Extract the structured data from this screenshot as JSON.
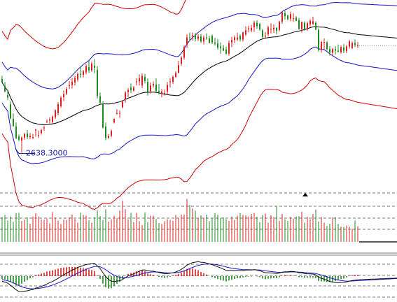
{
  "colors": {
    "up": "#d42020",
    "down": "#1f8a1f",
    "ma": "#000000",
    "band_inner": "#1515c8",
    "band_outer": "#d00000",
    "macd_fast": "#101010",
    "macd_slow": "#1515c8",
    "grid": "#7a7a7a",
    "volume_base": "#5a5a5a",
    "label": "#1a1aa6"
  },
  "icons": {
    "marker": "triangle-up-icon",
    "low_marker": "arrow-pointer-icon"
  },
  "chart_data": [
    {
      "type": "candlestick",
      "panel": "price",
      "n": 128,
      "low_annotation": "2638.3000",
      "low_index": 7,
      "ylim": [
        2560,
        2940
      ],
      "open": [
        2784,
        2770,
        2752,
        2734,
        2705,
        2690,
        2670,
        2662,
        2668,
        2676,
        2669,
        2668,
        2682,
        2672,
        2677,
        2687,
        2699,
        2702,
        2699,
        2708,
        2716,
        2730,
        2748,
        2755,
        2770,
        2772,
        2777,
        2783,
        2794,
        2792,
        2797,
        2807,
        2801,
        2810,
        2802,
        2750,
        2735,
        2690,
        2667,
        2672,
        2698,
        2716,
        2716,
        2728,
        2744,
        2758,
        2767,
        2761,
        2779,
        2779,
        2771,
        2788,
        2778,
        2760,
        2771,
        2773,
        2760,
        2755,
        2756,
        2759,
        2778,
        2778,
        2788,
        2796,
        2814,
        2826,
        2851,
        2866,
        2868,
        2870,
        2863,
        2868,
        2858,
        2866,
        2864,
        2869,
        2856,
        2854,
        2848,
        2845,
        2842,
        2834,
        2856,
        2861,
        2862,
        2869,
        2862,
        2872,
        2882,
        2880,
        2886,
        2895,
        2893,
        2880,
        2868,
        2872,
        2883,
        2882,
        2885,
        2881,
        2897,
        2914,
        2909,
        2903,
        2903,
        2905,
        2900,
        2883,
        2895,
        2883,
        2892,
        2892,
        2895,
        2881,
        2842,
        2857,
        2856,
        2843,
        2836,
        2843,
        2840,
        2837,
        2846,
        2839,
        2848,
        2845,
        2855,
        2850
      ],
      "high": [
        2790,
        2778,
        2760,
        2740,
        2716,
        2698,
        2674,
        2670,
        2677,
        2683,
        2677,
        2675,
        2685,
        2682,
        2686,
        2691,
        2704,
        2708,
        2712,
        2724,
        2738,
        2750,
        2761,
        2768,
        2780,
        2786,
        2790,
        2797,
        2807,
        2802,
        2813,
        2820,
        2818,
        2823,
        2809,
        2757,
        2740,
        2698,
        2675,
        2684,
        2706,
        2724,
        2722,
        2740,
        2760,
        2766,
        2775,
        2770,
        2785,
        2793,
        2795,
        2794,
        2785,
        2777,
        2779,
        2785,
        2774,
        2764,
        2763,
        2778,
        2786,
        2791,
        2799,
        2820,
        2829,
        2850,
        2872,
        2876,
        2876,
        2875,
        2872,
        2873,
        2870,
        2874,
        2869,
        2872,
        2865,
        2863,
        2856,
        2851,
        2848,
        2860,
        2867,
        2870,
        2875,
        2872,
        2877,
        2888,
        2889,
        2891,
        2899,
        2900,
        2895,
        2883,
        2877,
        2889,
        2894,
        2892,
        2886,
        2899,
        2916,
        2919,
        2911,
        2917,
        2914,
        2908,
        2905,
        2897,
        2898,
        2897,
        2902,
        2907,
        2898,
        2884,
        2859,
        2864,
        2859,
        2849,
        2845,
        2849,
        2852,
        2850,
        2853,
        2851,
        2861,
        2858,
        2862,
        2857
      ],
      "low": [
        2777,
        2758,
        2742,
        2704,
        2689,
        2665,
        2661,
        2638,
        2664,
        2665,
        2665,
        2665,
        2670,
        2668,
        2674,
        2681,
        2697,
        2695,
        2695,
        2705,
        2712,
        2727,
        2740,
        2752,
        2764,
        2765,
        2771,
        2779,
        2786,
        2787,
        2793,
        2796,
        2798,
        2795,
        2745,
        2733,
        2686,
        2663,
        2666,
        2669,
        2696,
        2714,
        2707,
        2726,
        2737,
        2748,
        2756,
        2759,
        2771,
        2771,
        2766,
        2775,
        2751,
        2755,
        2767,
        2756,
        2753,
        2748,
        2751,
        2752,
        2767,
        2774,
        2786,
        2795,
        2810,
        2822,
        2846,
        2859,
        2860,
        2858,
        2859,
        2855,
        2852,
        2861,
        2854,
        2853,
        2850,
        2842,
        2834,
        2839,
        2832,
        2830,
        2847,
        2855,
        2859,
        2858,
        2858,
        2869,
        2876,
        2876,
        2877,
        2883,
        2879,
        2864,
        2865,
        2868,
        2874,
        2875,
        2872,
        2878,
        2893,
        2901,
        2900,
        2898,
        2897,
        2898,
        2881,
        2876,
        2879,
        2879,
        2888,
        2892,
        2881,
        2838,
        2836,
        2842,
        2840,
        2830,
        2829,
        2832,
        2836,
        2834,
        2835,
        2835,
        2844,
        2843,
        2847,
        2845
      ],
      "close": [
        2777,
        2759,
        2747,
        2706,
        2691,
        2667,
        2664,
        2668,
        2675,
        2669,
        2671,
        2669,
        2684,
        2673,
        2683,
        2688,
        2700,
        2704,
        2709,
        2722,
        2734,
        2747,
        2754,
        2764,
        2772,
        2778,
        2786,
        2794,
        2792,
        2799,
        2809,
        2801,
        2814,
        2806,
        2750,
        2737,
        2688,
        2667,
        2671,
        2681,
        2705,
        2716,
        2717,
        2739,
        2757,
        2762,
        2762,
        2767,
        2779,
        2785,
        2790,
        2780,
        2758,
        2771,
        2774,
        2760,
        2758,
        2759,
        2756,
        2772,
        2779,
        2788,
        2796,
        2811,
        2826,
        2847,
        2866,
        2865,
        2870,
        2863,
        2868,
        2858,
        2866,
        2864,
        2855,
        2856,
        2854,
        2846,
        2845,
        2840,
        2834,
        2855,
        2861,
        2866,
        2866,
        2862,
        2876,
        2880,
        2884,
        2885,
        2895,
        2888,
        2882,
        2867,
        2869,
        2886,
        2883,
        2885,
        2879,
        2897,
        2916,
        2908,
        2902,
        2912,
        2904,
        2899,
        2883,
        2897,
        2883,
        2894,
        2899,
        2898,
        2881,
        2841,
        2857,
        2857,
        2843,
        2836,
        2843,
        2840,
        2838,
        2847,
        2840,
        2848,
        2858,
        2855,
        2851,
        2850
      ]
    },
    {
      "type": "bar",
      "panel": "volume",
      "n": 128,
      "ylim": [
        0,
        150
      ],
      "values": [
        68,
        74,
        59,
        70,
        55,
        79,
        80,
        58,
        61,
        67,
        50,
        70,
        79,
        70,
        61,
        61,
        64,
        51,
        82,
        67,
        59,
        49,
        61,
        60,
        67,
        75,
        63,
        53,
        81,
        74,
        72,
        60,
        53,
        68,
        87,
        71,
        60,
        90,
        56,
        62,
        72,
        65,
        86,
        113,
        90,
        62,
        80,
        54,
        80,
        57,
        46,
        81,
        55,
        72,
        72,
        63,
        52,
        49,
        57,
        62,
        60,
        58,
        74,
        64,
        75,
        75,
        118,
        102,
        92,
        86,
        65,
        73,
        66,
        75,
        57,
        65,
        79,
        75,
        65,
        67,
        63,
        58,
        70,
        60,
        72,
        79,
        74,
        73,
        70,
        77,
        79,
        69,
        54,
        74,
        78,
        53,
        73,
        68,
        99,
        58,
        77,
        62,
        58,
        69,
        64,
        70,
        71,
        83,
        53,
        69,
        62,
        77,
        89,
        56,
        68,
        53,
        44,
        50,
        67,
        68,
        50,
        42,
        41,
        45,
        42,
        36,
        59,
        43
      ]
    },
    {
      "type": "line",
      "panel": "macd",
      "n": 128,
      "ylim": [
        -45,
        45
      ],
      "series": [
        {
          "values": [
            -9.8,
            -11.3,
            -13.3,
            -17.5,
            -21.4,
            -25.9,
            -29.1,
            -29.2,
            -28.4,
            -27.8,
            -26.4,
            -25.3,
            -22.6,
            -21.3,
            -19.5,
            -17.5,
            -14.8,
            -12.3,
            -10.0,
            -7.1,
            -4.1,
            -0.6,
            2.4,
            5.5,
            8.5,
            11.2,
            13.9,
            16.6,
            18.4,
            20.1,
            21.9,
            22.9,
            24.0,
            24.3,
            19.4,
            14.2,
            6.5,
            -0.9,
            -6.3,
            -9.5,
            -10.0,
            -9.4,
            -8.8,
            -6.3,
            -2.8,
            0.4,
            2.5,
            4.4,
            6.9,
            9.4,
            11.6,
            11.8,
            10.1,
            9.7,
            9.4,
            8.2,
            6.9,
            5.7,
            4.5,
            4.7,
            5.4,
            6.4,
            7.9,
            10.0,
            12.8,
            16.6,
            20.6,
            23.4,
            25.6,
            26.5,
            27.2,
            26.4,
            25.9,
            24.8,
            23.1,
            21.6,
            19.8,
            17.6,
            15.6,
            13.4,
            11.0,
            10.9,
            10.7,
            10.9,
            10.9,
            10.4,
            11.0,
            11.4,
            11.7,
            11.7,
            12.2,
            11.4,
            10.3,
            8.2,
            6.5,
            6.4,
            5.9,
            5.6,
            4.9,
            5.8,
            7.7,
            8.4,
            8.3,
            9.0,
            8.7,
            7.9,
            6.3,
            6.2,
            4.8,
            4.5,
            4.4,
            4.0,
            2.5,
            -2.0,
            -4.1,
            -5.8,
            -8.0,
            -10.1,
            -11.2,
            -12.0,
            -12.4,
            -11.9,
            -11.9,
            -11.0,
            -9.4,
            -8.2,
            -7.5,
            -6.9
          ]
        },
        {
          "values": [
            -6.5,
            -7.5,
            -8.7,
            -10.5,
            -12.7,
            -15.3,
            -18.0,
            -20.2,
            -21.8,
            -23.0,
            -23.7,
            -24.0,
            -23.7,
            -23.2,
            -22.5,
            -21.5,
            -20.2,
            -18.6,
            -16.9,
            -14.9,
            -12.8,
            -10.4,
            -7.8,
            -5.1,
            -2.4,
            0.3,
            3.0,
            5.7,
            8.3,
            10.6,
            12.9,
            14.9,
            16.7,
            18.2,
            18.5,
            17.6,
            15.4,
            12.1,
            8.4,
            4.8,
            1.8,
            -0.4,
            -2.1,
            -3.0,
            -3.0,
            -2.3,
            -1.3,
            -0.1,
            1.3,
            2.9,
            4.6,
            6.0,
            6.9,
            7.5,
            7.9,
            8.0,
            7.8,
            7.3,
            6.8,
            6.3,
            6.1,
            6.2,
            6.5,
            7.2,
            8.3,
            9.9,
            12.0,
            14.3,
            16.6,
            18.5,
            20.3,
            21.5,
            22.4,
            22.9,
            23.0,
            22.8,
            22.1,
            21.2,
            20.1,
            18.8,
            17.3,
            16.1,
            15.0,
            14.2,
            13.5,
            12.9,
            12.5,
            12.3,
            12.2,
            12.1,
            12.1,
            11.9,
            11.6,
            11.0,
            10.1,
            9.4,
            8.7,
            8.1,
            7.5,
            7.2,
            7.3,
            7.5,
            7.7,
            7.9,
            8.1,
            8.0,
            7.7,
            7.4,
            6.9,
            6.4,
            6.0,
            5.6,
            5.0,
            3.6,
            2.1,
            0.5,
            -1.2,
            -3.0,
            -4.6,
            -6.1,
            -7.4,
            -8.3,
            -9.0,
            -9.5,
            -9.4,
            -9.2,
            -8.9,
            -8.5
          ]
        }
      ],
      "histogram": [
        -3.3,
        -3.8,
        -4.6,
        -7.0,
        -8.7,
        -10.6,
        -11.1,
        -9.0,
        -6.6,
        -4.8,
        -2.7,
        -1.3,
        1.1,
        1.9,
        3.0,
        4.0,
        5.4,
        6.3,
        6.9,
        7.8,
        8.7,
        9.8,
        10.2,
        10.6,
        10.9,
        10.9,
        10.9,
        10.9,
        10.1,
        9.5,
        9.0,
        8.0,
        7.3,
        6.1,
        0.9,
        -3.4,
        -8.9,
        -13.0,
        -14.7,
        -14.3,
        -11.8,
        -9.0,
        -6.7,
        -3.3,
        0.2,
        2.7,
        3.8,
        4.5,
        5.6,
        6.5,
        7.0,
        5.8,
        3.2,
        2.2,
        1.5,
        0.2,
        -0.9,
        -1.6,
        -2.3,
        -1.6,
        -0.7,
        0.2,
        1.4,
        2.8,
        4.5,
        6.7,
        8.6,
        9.1,
        9.0,
        8.0,
        6.9,
        4.9,
        3.5,
        1.9,
        0.1,
        -1.2,
        -2.3,
        -3.6,
        -4.5,
        -5.4,
        -6.3,
        -5.2,
        -4.3,
        -3.3,
        -2.6,
        -2.5,
        -1.5,
        -0.9,
        -0.5,
        -0.4,
        0.1,
        -0.5,
        -1.3,
        -2.8,
        -3.6,
        -3.0,
        -2.8,
        -2.5,
        -2.6,
        -1.4,
        0.4,
        0.9,
        0.6,
        1.1,
        0.6,
        -0.1,
        -1.4,
        -1.2,
        -2.1,
        -1.9,
        -1.6,
        -1.6,
        -2.5,
        -5.6,
        -6.2,
        -6.3,
        -6.8,
        -7.1,
        -6.6,
        -5.9,
        -5.0,
        -3.6,
        -2.9,
        -1.5,
        0.1,
        1.0,
        1.4,
        1.6
      ]
    }
  ]
}
